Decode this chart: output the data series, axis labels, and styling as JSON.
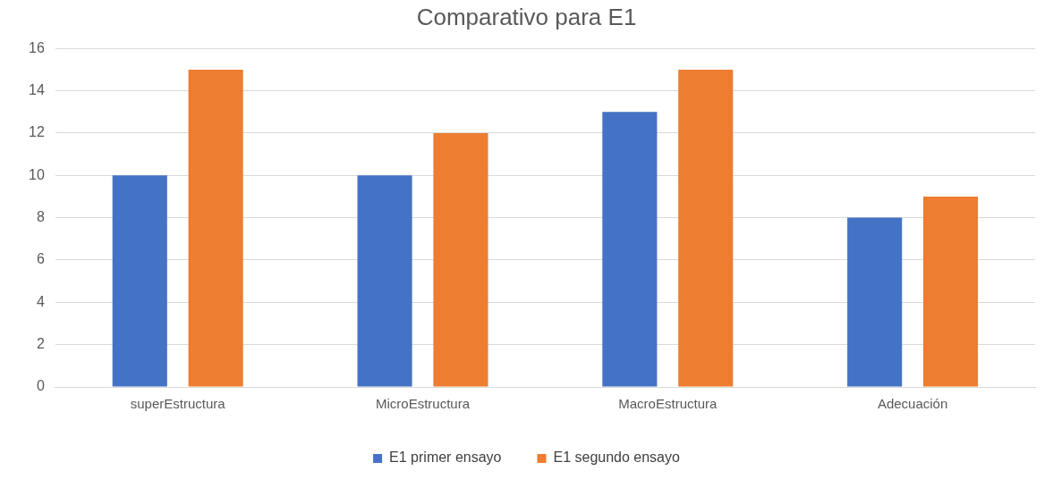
{
  "chart_data": {
    "type": "bar",
    "title": "Comparativo para E1",
    "categories": [
      "superEstructura",
      "MicroEstructura",
      "MacroEstructura",
      "Adecuación"
    ],
    "series": [
      {
        "name": "E1 primer ensayo",
        "color": "#4472c4",
        "values": [
          10,
          10,
          13,
          8
        ]
      },
      {
        "name": "E1 segundo ensayo",
        "color": "#ed7d31",
        "values": [
          15,
          12,
          15,
          9
        ]
      }
    ],
    "ylim": [
      0,
      16
    ],
    "yticks": [
      0,
      2,
      4,
      6,
      8,
      10,
      12,
      14,
      16
    ],
    "grid": "y",
    "legend": "bottom"
  }
}
